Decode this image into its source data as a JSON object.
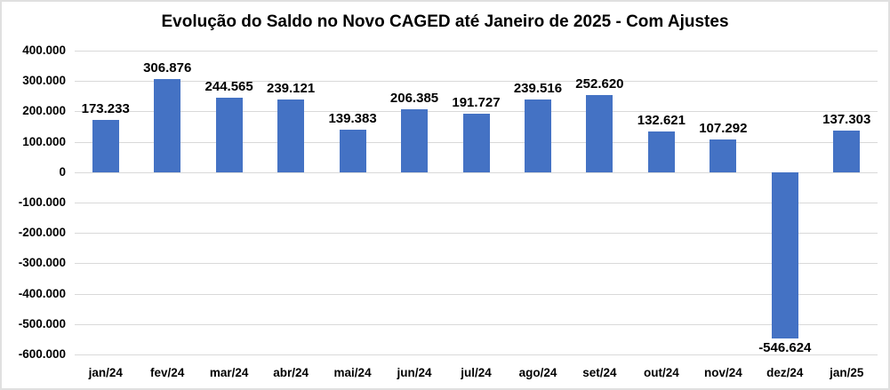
{
  "title": "Evolução do Saldo no Novo CAGED até Janeiro de 2025 - Com Ajustes",
  "colors": {
    "bar": "#4472C4",
    "gridline": "#d9d9d9",
    "text": "#000000",
    "background": "#ffffff",
    "frame": "#e0e0e0"
  },
  "chart_data": {
    "type": "bar",
    "title": "Evolução do Saldo no Novo CAGED até Janeiro de 2025 - Com Ajustes",
    "categories": [
      "jan/24",
      "fev/24",
      "mar/24",
      "abr/24",
      "mai/24",
      "jun/24",
      "jul/24",
      "ago/24",
      "set/24",
      "out/24",
      "nov/24",
      "dez/24",
      "jan/25"
    ],
    "values": [
      173233,
      306876,
      244565,
      239121,
      139383,
      206385,
      191727,
      239516,
      252620,
      132621,
      107292,
      -546624,
      137303
    ],
    "value_labels": [
      "173.233",
      "306.876",
      "244.565",
      "239.121",
      "139.383",
      "206.385",
      "191.727",
      "239.516",
      "252.620",
      "132.621",
      "107.292",
      "-546.624",
      "137.303"
    ],
    "xlabel": "",
    "ylabel": "",
    "ylim": [
      -600000,
      400000
    ],
    "ytick_step": 100000,
    "ytick_labels": [
      "400.000",
      "300.000",
      "200.000",
      "100.000",
      "0",
      "-100.000",
      "-200.000",
      "-300.000",
      "-400.000",
      "-500.000",
      "-600.000"
    ],
    "grid": true,
    "legend_position": "none",
    "series_color": "#4472C4"
  }
}
